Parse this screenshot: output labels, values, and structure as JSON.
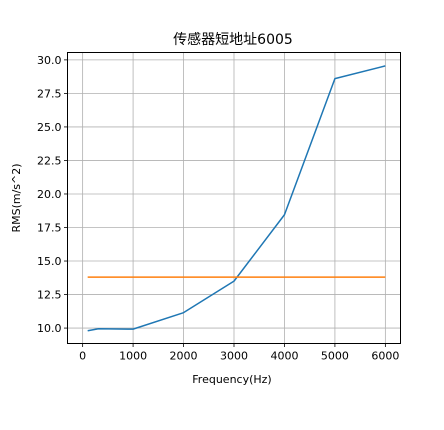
{
  "chart_data": {
    "type": "line",
    "title": "传感器短地址6005",
    "xlabel": "Frequency(Hz)",
    "ylabel": "RMS(m/s^2)",
    "xlim": [
      -300,
      6300
    ],
    "ylim": [
      8.85,
      30.55
    ],
    "x_ticks": [
      0,
      1000,
      2000,
      3000,
      4000,
      5000,
      6000
    ],
    "x_tick_labels": [
      "0",
      "1000",
      "2000",
      "3000",
      "4000",
      "5000",
      "6000"
    ],
    "y_ticks": [
      10.0,
      12.5,
      15.0,
      17.5,
      20.0,
      22.5,
      25.0,
      27.5,
      30.0
    ],
    "y_tick_labels": [
      "10.0",
      "12.5",
      "15.0",
      "17.5",
      "20.0",
      "22.5",
      "25.0",
      "27.5",
      "30.0"
    ],
    "grid": true,
    "series": [
      {
        "color": "#1f77b4",
        "x": [
          100,
          315,
          1000,
          2000,
          3000,
          4000,
          5000,
          6000
        ],
        "values": [
          9.8,
          9.95,
          9.92,
          11.15,
          13.5,
          18.45,
          28.6,
          29.55
        ]
      },
      {
        "color": "#ff7f0e",
        "x": [
          100,
          6000
        ],
        "values": [
          13.8,
          13.8
        ]
      }
    ]
  }
}
